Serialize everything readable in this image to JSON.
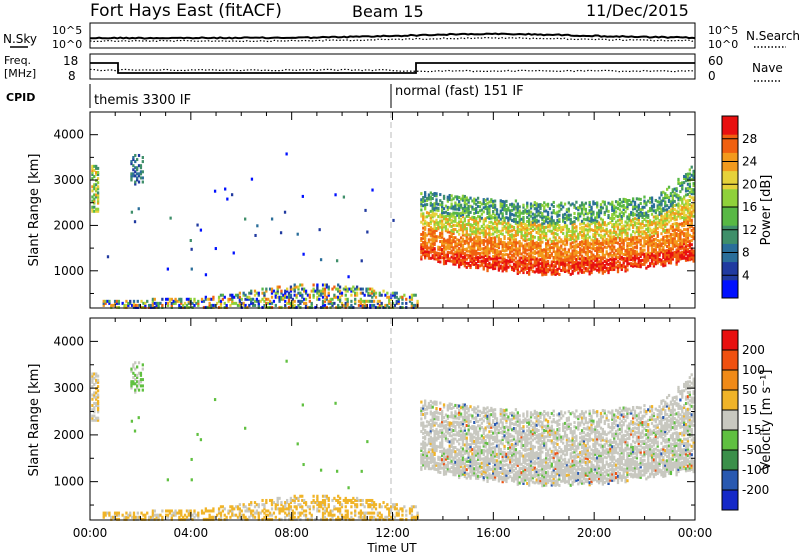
{
  "header": {
    "radar": "Fort Hays East (fitACF)",
    "beam": "Beam 15",
    "date": "11/Dec/2015"
  },
  "nsky_panel": {
    "left_label": "N.Sky",
    "right_label": "N.Search",
    "left_ticks": [
      "10^5",
      "10^0"
    ],
    "right_ticks": [
      "10^5",
      "10^0"
    ],
    "right_legend_line": "solid-black"
  },
  "freq_panel": {
    "left_label_line1": "Freq.",
    "left_label_line2": "[MHz]",
    "right_label": "Nave",
    "left_ticks": [
      "18",
      "8"
    ],
    "right_ticks": [
      "60",
      "0"
    ]
  },
  "cpid": {
    "label": "CPID",
    "modes": [
      {
        "name": "themis 3300 IF",
        "start_hour": 0,
        "end_hour": 12
      },
      {
        "name": "normal (fast) 151 IF",
        "start_hour": 12,
        "end_hour": 24
      }
    ]
  },
  "chart_data": [
    {
      "type": "heatmap",
      "panel": "power",
      "ylabel": "Slant Range [km]",
      "ylim": [
        180,
        4500
      ],
      "yticks": [
        "4000",
        "3000",
        "2000",
        "1000"
      ],
      "x_ticks": [
        "00:00",
        "04:00",
        "08:00",
        "12:00",
        "16:00",
        "20:00",
        "00:00"
      ],
      "xlim": [
        0,
        24
      ],
      "colorbar": {
        "label": "Power [dB]",
        "ticks": [
          "28",
          "24",
          "20",
          "16",
          "12",
          "8",
          "4"
        ],
        "range": [
          0,
          30
        ],
        "colors": [
          "#0010ff",
          "#203aa0",
          "#2a6e9a",
          "#3f8f6a",
          "#58b845",
          "#8fd13a",
          "#e6d23a",
          "#f29a1c",
          "#f06010",
          "#e81010"
        ]
      }
    },
    {
      "type": "heatmap",
      "panel": "velocity",
      "ylabel": "Slant Range [km]",
      "ylim": [
        180,
        4500
      ],
      "yticks": [
        "4000",
        "3000",
        "2000",
        "1000"
      ],
      "x_ticks": [
        "00:00",
        "04:00",
        "08:00",
        "12:00",
        "16:00",
        "20:00",
        "00:00"
      ],
      "xlabel": "Time UT",
      "xlim": [
        0,
        24
      ],
      "colorbar": {
        "label": "Velocity [m s⁻¹]",
        "ticks": [
          "200",
          "100",
          "50",
          "15",
          "-15",
          "-50",
          "-100",
          "-200"
        ],
        "colors": [
          "#1428c8",
          "#2858b0",
          "#3a8f4a",
          "#60c040",
          "#c8c8c0",
          "#f0b428",
          "#f08a18",
          "#f05010",
          "#e81010"
        ]
      }
    }
  ]
}
